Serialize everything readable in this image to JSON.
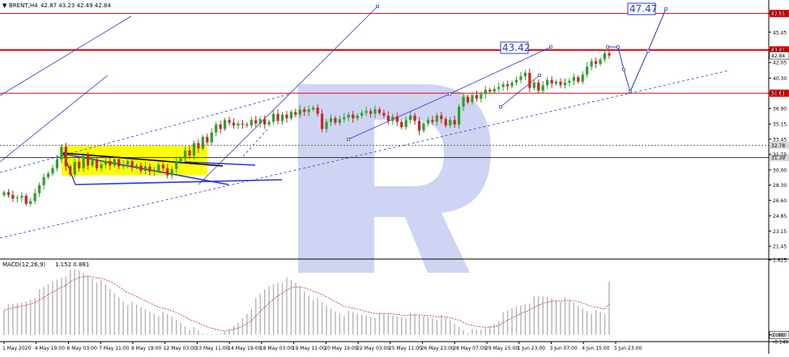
{
  "header": {
    "symbol": "BRENT,H4",
    "ohlc": "42.87 43.23 42.49 42.84"
  },
  "colors": {
    "bull": "#25a525",
    "bear": "#d81e1e",
    "level": "#e00000",
    "trend": "#2a38e8",
    "channel": "#3c4ce0",
    "zone": "#ffff00",
    "macd_hist": "#b4b4b4",
    "macd_signal": "#e62020",
    "watermark": "#c7cdf0"
  },
  "chart_data": [
    {
      "type": "candlestick",
      "symbol": "BRENT",
      "timeframe": "H4",
      "ylim": [
        20.1,
        48.7
      ],
      "y_ticks": [
        "47.55",
        "45.45",
        "43.46",
        "42.05",
        "40.30",
        "38.61",
        "36.90",
        "35.15",
        "33.45",
        "31.75",
        "30.00",
        "28.30",
        "26.60",
        "24.85",
        "23.15",
        "21.45"
      ],
      "price_labels": [
        {
          "value": 47.55,
          "text": "47.55",
          "style": "level"
        },
        {
          "value": 43.46,
          "text": "43.46",
          "style": "level"
        },
        {
          "value": 42.84,
          "text": "42.84",
          "style": "current"
        },
        {
          "value": 38.61,
          "text": "38.61",
          "style": "level"
        },
        {
          "value": 32.78,
          "text": "32.78",
          "style": "gray"
        },
        {
          "value": 31.39,
          "text": "31.39",
          "style": "gray"
        }
      ],
      "horizontal_levels": [
        {
          "value": 47.55,
          "style": "red"
        },
        {
          "value": 43.46,
          "style": "red-thick"
        },
        {
          "value": 38.61,
          "style": "red"
        },
        {
          "value": 32.78,
          "style": "dotted"
        },
        {
          "value": 31.39,
          "style": "solid-dark"
        }
      ],
      "annotations": [
        {
          "text": "43.42",
          "value": 43.42
        },
        {
          "text": "47.47",
          "value": 47.47
        }
      ],
      "x_tick_labels": [
        "1 May 2020",
        "4 May 19:00",
        "6 May 03:00",
        "7 May 11:00",
        "8 May 19:00",
        "12 May 03:00",
        "13 May 11:00",
        "14 May 19:00",
        "18 May 03:00",
        "19 May 11:00",
        "20 May 19:00",
        "22 May 03:00",
        "25 May 11:00",
        "26 May 23:00",
        "28 May 07:00",
        "29 May 15:00",
        "1 Jun 23:00",
        "3 Jun 07:00",
        "4 Jun 15:00",
        "5 Jun 23:00"
      ],
      "close": [
        27.5,
        27.2,
        26.8,
        26.9,
        27.1,
        26.2,
        26.5,
        27.4,
        28.3,
        29.2,
        29.6,
        30.2,
        31.2,
        32.6,
        30.4,
        29.5,
        30.9,
        30.2,
        31.6,
        30.5,
        31.1,
        30.2,
        30.6,
        31.0,
        30.5,
        31.2,
        30.4,
        30.6,
        31.0,
        30.3,
        30.5,
        29.9,
        30.4,
        29.8,
        29.9,
        30.6,
        30.2,
        29.4,
        30.1,
        30.9,
        31.3,
        32.2,
        31.6,
        33.0,
        32.4,
        33.7,
        33.1,
        34.2,
        35.1,
        34.6,
        35.6,
        35.3,
        35.0,
        35.2,
        35.1,
        35.0,
        35.6,
        35.2,
        35.7,
        35.1,
        35.4,
        36.3,
        35.5,
        36.2,
        35.8,
        36.5,
        36.2,
        36.8,
        36.5,
        36.8,
        37.0,
        36.3,
        34.6,
        35.4,
        35.8,
        35.3,
        35.7,
        35.9,
        36.2,
        35.8,
        36.1,
        36.4,
        36.6,
        36.3,
        36.8,
        36.4,
        36.1,
        35.5,
        36.0,
        35.4,
        34.8,
        35.6,
        36.1,
        35.5,
        34.4,
        35.2,
        35.6,
        35.4,
        36.1,
        35.7,
        35.0,
        35.6,
        35.1,
        37.1,
        38.2,
        37.6,
        38.4,
        38.0,
        38.5,
        39.0,
        38.8,
        39.1,
        39.3,
        39.6,
        39.4,
        39.8,
        40.1,
        40.5,
        40.9,
        39.2,
        39.8,
        38.9,
        39.5,
        40.1,
        39.7,
        39.9,
        39.5,
        39.8,
        40.0,
        40.4,
        39.9,
        40.7,
        41.6,
        42.2,
        41.9,
        42.4,
        43.1,
        42.84
      ]
    },
    {
      "type": "macd",
      "indicator": "MACD(12,26,9)",
      "values_text": "1.152 0.881",
      "macd": 1.152,
      "signal": 0.881,
      "ylim": [
        -0.146,
        1.625
      ],
      "y_ticks": [
        "1.625",
        "0.000",
        "-0.146"
      ]
    }
  ]
}
